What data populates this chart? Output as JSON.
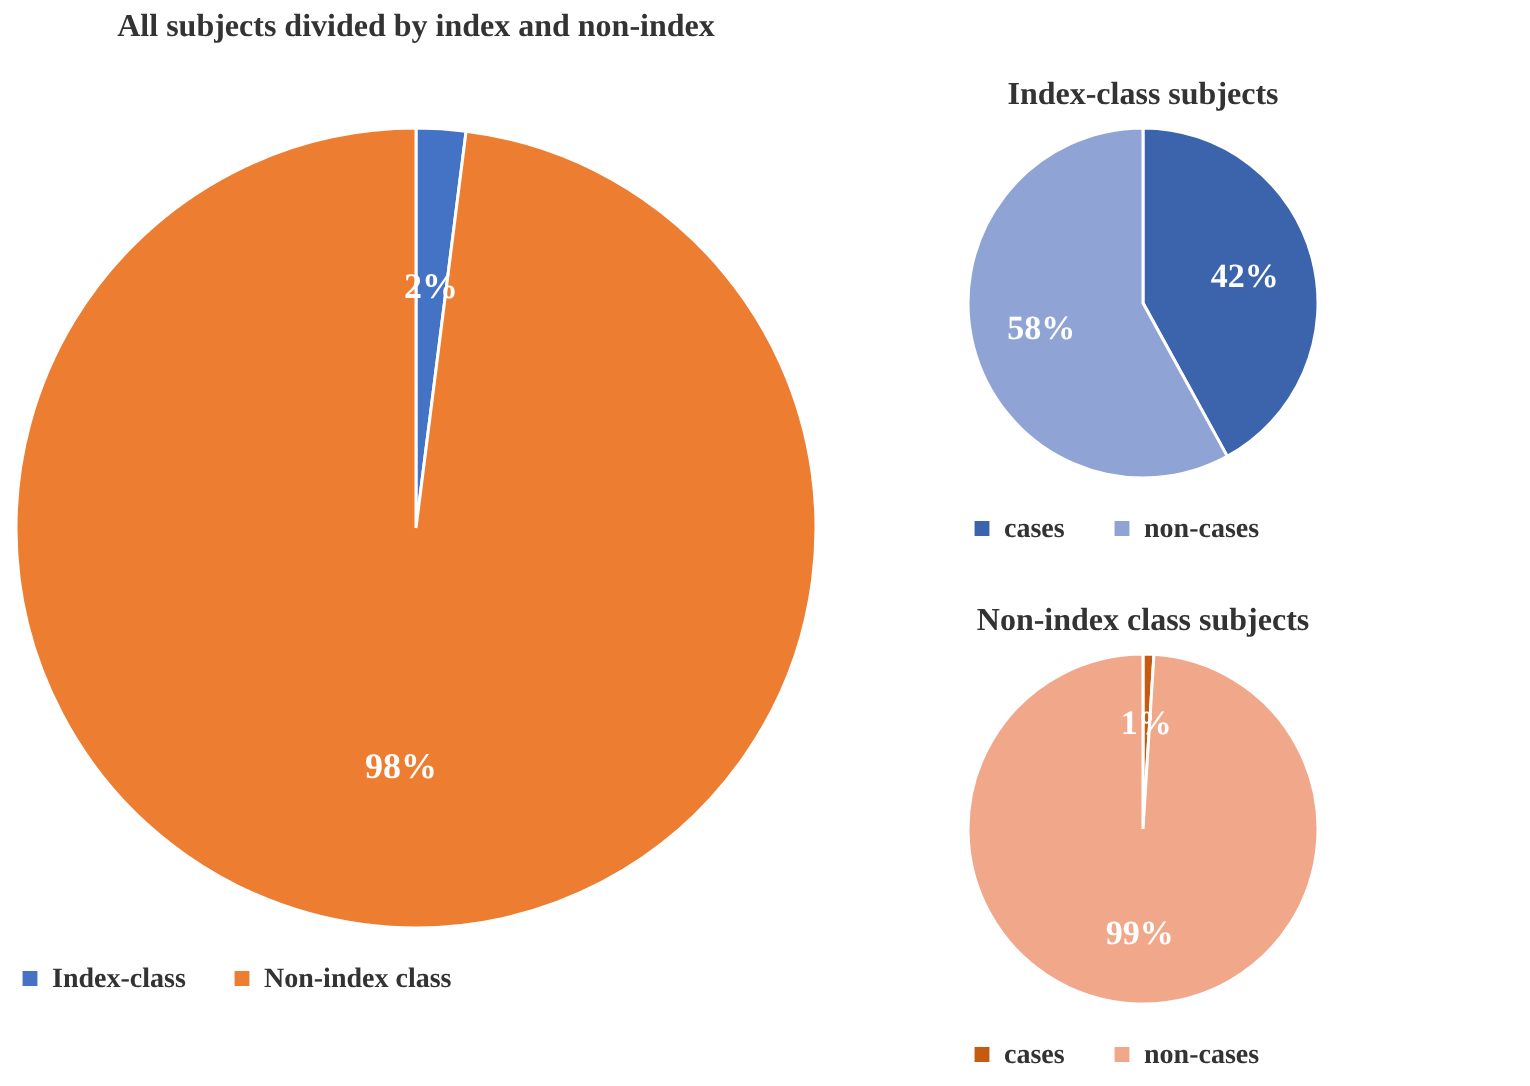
{
  "chart_data": [
    {
      "type": "pie",
      "title": "All subjects divided by index and non-index",
      "categories": [
        "Index-class",
        "Non-index class"
      ],
      "values": [
        2,
        98
      ],
      "value_labels": [
        "2%",
        "98%"
      ],
      "colors": [
        "#4472c4",
        "#ed7d31"
      ],
      "legend": "bottom"
    },
    {
      "type": "pie",
      "title": "Index-class subjects",
      "categories": [
        "cases",
        "non-cases"
      ],
      "values": [
        42,
        58
      ],
      "value_labels": [
        "42%",
        "58%"
      ],
      "colors": [
        "#3b64ad",
        "#8fa4d5"
      ],
      "legend": "bottom"
    },
    {
      "type": "pie",
      "title": "Non-index class subjects",
      "categories": [
        "cases",
        "non-cases"
      ],
      "values": [
        1,
        99
      ],
      "value_labels": [
        "1%",
        "99%"
      ],
      "colors": [
        "#c55a11",
        "#f1a88a"
      ],
      "legend": "bottom"
    }
  ]
}
